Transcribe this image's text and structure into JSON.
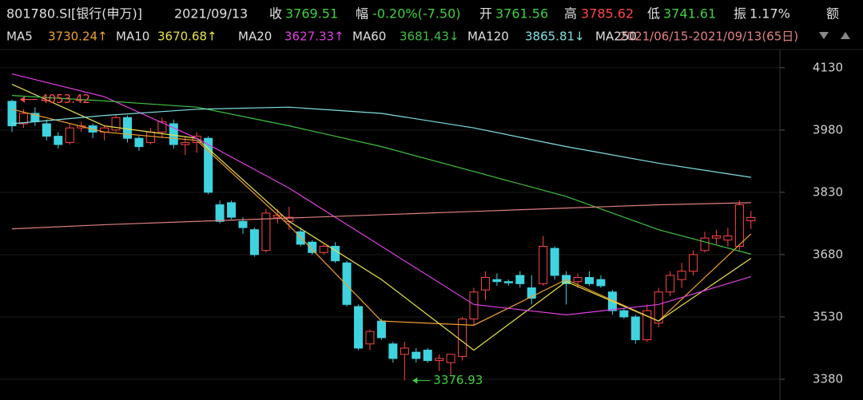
{
  "header": {
    "symbol": "801780.SI[银行(申万)]",
    "date": "2021/09/13",
    "close_label": "收",
    "close": "3769.51",
    "change_label": "幅",
    "change": "-0.20%(-7.50)",
    "open_label": "开",
    "open": "3761.56",
    "high_label": "高",
    "high": "3785.62",
    "low_label": "低",
    "low": "3741.61",
    "amp_label": "振",
    "amp": "1.17%",
    "amount_label": "额",
    "range": "2021/06/15-2021/09/13(65日)"
  },
  "chart_data": {
    "type": "candlestick",
    "up_color": "#ff4646",
    "down_color": "#3fd3e0",
    "ylim": [
      3330,
      4168
    ],
    "yticks": [
      4130,
      3980,
      3830,
      3680,
      3530,
      3380
    ],
    "grid": true,
    "open": [
      4049,
      3995,
      4020,
      3995,
      3965,
      3950,
      3985,
      3990,
      3975,
      3980,
      4010,
      3960,
      3950,
      3975,
      3995,
      3945,
      3950,
      3960,
      3800,
      3805,
      3760,
      3740,
      3690,
      3770,
      3760,
      3735,
      3710,
      3685,
      3700,
      3660,
      3555,
      3465,
      3520,
      3465,
      3440,
      3445,
      3450,
      3425,
      3420,
      3435,
      3525,
      3595,
      3620,
      3615,
      3630,
      3600,
      3610,
      3695,
      3630,
      3615,
      3625,
      3620,
      3590,
      3545,
      3530,
      3475,
      3515,
      3590,
      3620,
      3640,
      3690,
      3720,
      3715,
      3700,
      3761.56
    ],
    "high": [
      4053,
      4030,
      4035,
      4005,
      3975,
      3995,
      4000,
      3995,
      3990,
      4015,
      4015,
      3965,
      3985,
      4010,
      4005,
      3965,
      3975,
      3965,
      3810,
      3810,
      3770,
      3745,
      3790,
      3790,
      3795,
      3745,
      3715,
      3705,
      3710,
      3665,
      3560,
      3500,
      3525,
      3470,
      3470,
      3455,
      3455,
      3440,
      3440,
      3530,
      3600,
      3640,
      3635,
      3620,
      3640,
      3630,
      3725,
      3700,
      3640,
      3635,
      3640,
      3630,
      3595,
      3550,
      3535,
      3560,
      3600,
      3640,
      3660,
      3690,
      3735,
      3740,
      3745,
      3810,
      3785.62
    ],
    "low": [
      3975,
      3985,
      3990,
      3955,
      3935,
      3945,
      3975,
      3960,
      3955,
      3975,
      3950,
      3930,
      3945,
      3960,
      3935,
      3920,
      3925,
      3825,
      3755,
      3765,
      3730,
      3675,
      3685,
      3755,
      3740,
      3700,
      3680,
      3680,
      3660,
      3555,
      3450,
      3450,
      3475,
      3420,
      3376.93,
      3420,
      3420,
      3400,
      3390,
      3425,
      3510,
      3570,
      3605,
      3605,
      3600,
      3560,
      3605,
      3620,
      3560,
      3600,
      3605,
      3600,
      3535,
      3525,
      3465,
      3470,
      3505,
      3580,
      3600,
      3630,
      3685,
      3705,
      3700,
      3690,
      3741.61
    ],
    "close": [
      3990,
      4020,
      4000,
      3965,
      3945,
      3985,
      3990,
      3975,
      3985,
      4010,
      3960,
      3940,
      3975,
      4000,
      3945,
      3950,
      3965,
      3830,
      3760,
      3770,
      3745,
      3680,
      3780,
      3775,
      3770,
      3705,
      3685,
      3700,
      3665,
      3560,
      3455,
      3495,
      3480,
      3430,
      3455,
      3430,
      3425,
      3430,
      3440,
      3525,
      3590,
      3625,
      3615,
      3612,
      3610,
      3575,
      3700,
      3630,
      3610,
      3625,
      3610,
      3605,
      3545,
      3530,
      3475,
      3545,
      3590,
      3630,
      3640,
      3680,
      3720,
      3725,
      3725,
      3800,
      3769.51
    ],
    "annotations": [
      {
        "text": "4053.42",
        "value": 4053.42,
        "index": 0,
        "color": "#ff5050"
      },
      {
        "text": "3376.93",
        "value": 3376.93,
        "index": 34,
        "color": "#40d040"
      }
    ],
    "series": [
      {
        "name": "MA5",
        "legend_value": "3730.24↑",
        "color": "#f0a030",
        "x": [
          0,
          8,
          16,
          24,
          32,
          40,
          48,
          56,
          64
        ],
        "values": [
          4030,
          3975,
          3955,
          3750,
          3520,
          3510,
          3620,
          3520,
          3730
        ]
      },
      {
        "name": "MA10",
        "legend_value": "3670.68↑",
        "color": "#e8e04a",
        "x": [
          0,
          8,
          16,
          24,
          32,
          40,
          48,
          56,
          64
        ],
        "values": [
          4090,
          3990,
          3960,
          3760,
          3620,
          3450,
          3615,
          3520,
          3671
        ]
      },
      {
        "name": "MA20",
        "legend_value": "3627.33↑",
        "color": "#e040e0",
        "x": [
          0,
          8,
          16,
          24,
          32,
          40,
          48,
          56,
          64
        ],
        "values": [
          4115,
          4060,
          3960,
          3840,
          3700,
          3560,
          3535,
          3560,
          3627
        ]
      },
      {
        "name": "MA60",
        "legend_value": "3681.43↓",
        "color": "#40c040",
        "x": [
          0,
          8,
          16,
          24,
          32,
          40,
          48,
          56,
          64
        ],
        "values": [
          4063,
          4050,
          4035,
          3990,
          3940,
          3880,
          3820,
          3740,
          3681
        ]
      },
      {
        "name": "MA120",
        "legend_value": "3865.81↓",
        "color": "#80e0e0",
        "x": [
          0,
          8,
          16,
          24,
          32,
          40,
          48,
          56,
          64
        ],
        "values": [
          3995,
          4015,
          4030,
          4035,
          4020,
          3985,
          3940,
          3900,
          3866
        ]
      },
      {
        "name": "MA250",
        "color": "#e08080",
        "x": [
          0,
          8,
          16,
          24,
          32,
          40,
          48,
          56,
          64
        ],
        "values": [
          3742,
          3752,
          3760,
          3768,
          3776,
          3784,
          3792,
          3800,
          3805
        ]
      }
    ]
  }
}
